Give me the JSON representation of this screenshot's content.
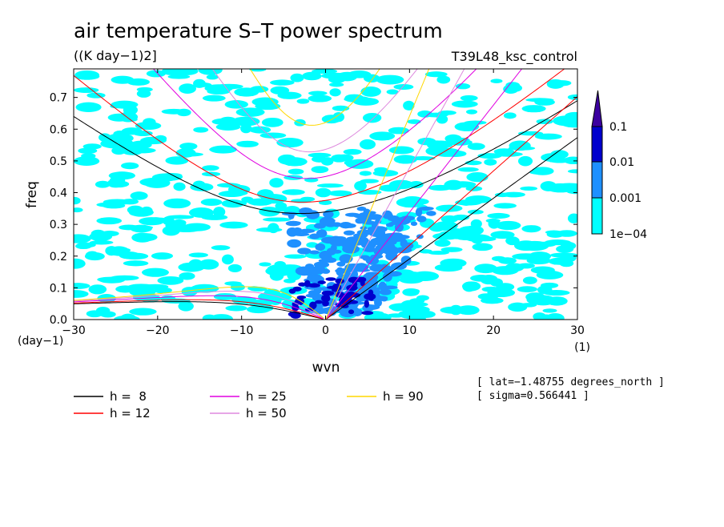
{
  "chart_data": {
    "type": "heatmap",
    "title": "air temperature S–T power spectrum",
    "subtitle": "((K day−1)2]",
    "run_label": "T39L48_ksc_control",
    "xlabel": "wvn",
    "ylabel": "freq",
    "x_unit_label": "(1)",
    "y_unit_label": "(day−1)",
    "xlim": [
      -30,
      30
    ],
    "ylim": [
      0,
      0.79
    ],
    "x_ticks": [
      -30,
      -20,
      -10,
      0,
      10,
      20,
      30
    ],
    "x_tick_labels": [
      "−30",
      "−20",
      "−10",
      "0",
      "10",
      "20",
      "30"
    ],
    "y_ticks": [
      0,
      0.1,
      0.2,
      0.3,
      0.4,
      0.5,
      0.6,
      0.7
    ],
    "y_tick_labels": [
      "0.0",
      "0.1",
      "0.2",
      "0.3",
      "0.4",
      "0.5",
      "0.6",
      "0.7"
    ],
    "colorbar": {
      "levels": [
        "1e−04",
        "0.001",
        "0.01",
        "0.1"
      ],
      "colors": [
        "#00ffff",
        "#1e90ff",
        "#0000cd",
        "#3c00a0"
      ]
    },
    "dispersion_curves": [
      {
        "name": "h =  8",
        "h": 8,
        "color": "#000000"
      },
      {
        "name": "h = 12",
        "h": 12,
        "color": "#ff0000"
      },
      {
        "name": "h = 25",
        "h": 25,
        "color": "#e000e0"
      },
      {
        "name": "h = 50",
        "h": 50,
        "color": "#dd88dd"
      },
      {
        "name": "h = 90",
        "h": 90,
        "color": "#ffd700"
      }
    ],
    "info_lines": [
      "[ lat=−1.48755 degrees_north ]",
      "[ sigma=0.566441 ]"
    ],
    "grid": false
  }
}
